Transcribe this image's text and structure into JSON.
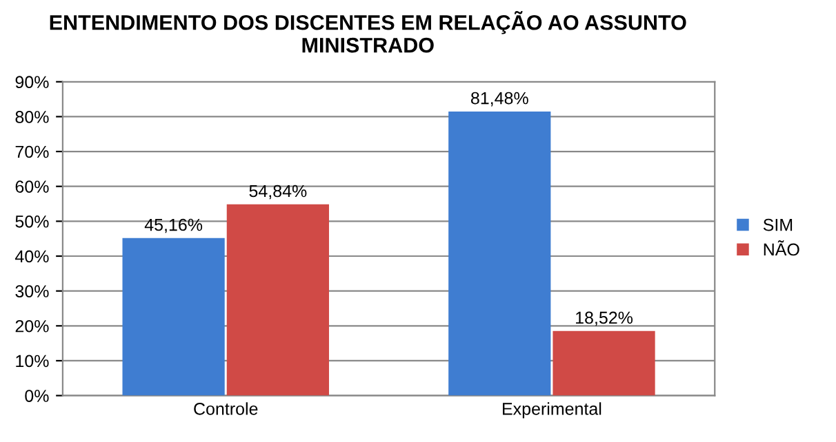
{
  "chart_data": {
    "type": "bar",
    "title": "ENTENDIMENTO DOS DISCENTES EM RELAÇÃO AO ASSUNTO MINISTRADO",
    "categories": [
      "Controle",
      "Experimental"
    ],
    "series": [
      {
        "name": "SIM",
        "color": "#3f7dd1",
        "values": [
          45.16,
          81.48
        ],
        "value_labels": [
          "45,16%",
          "81,48%"
        ]
      },
      {
        "name": "NÃO",
        "color": "#d04a46",
        "values": [
          54.84,
          18.52
        ],
        "value_labels": [
          "54,84%",
          "18,52%"
        ]
      }
    ],
    "ylim": [
      0,
      90
    ],
    "yticks": [
      {
        "value": 0,
        "label": "0%"
      },
      {
        "value": 10,
        "label": "10%"
      },
      {
        "value": 20,
        "label": "20%"
      },
      {
        "value": 30,
        "label": "30%"
      },
      {
        "value": 40,
        "label": "40%"
      },
      {
        "value": 50,
        "label": "50%"
      },
      {
        "value": 60,
        "label": "60%"
      },
      {
        "value": 70,
        "label": "70%"
      },
      {
        "value": 80,
        "label": "80%"
      },
      {
        "value": 90,
        "label": "90%"
      }
    ],
    "grid": "y",
    "legend": "right"
  }
}
